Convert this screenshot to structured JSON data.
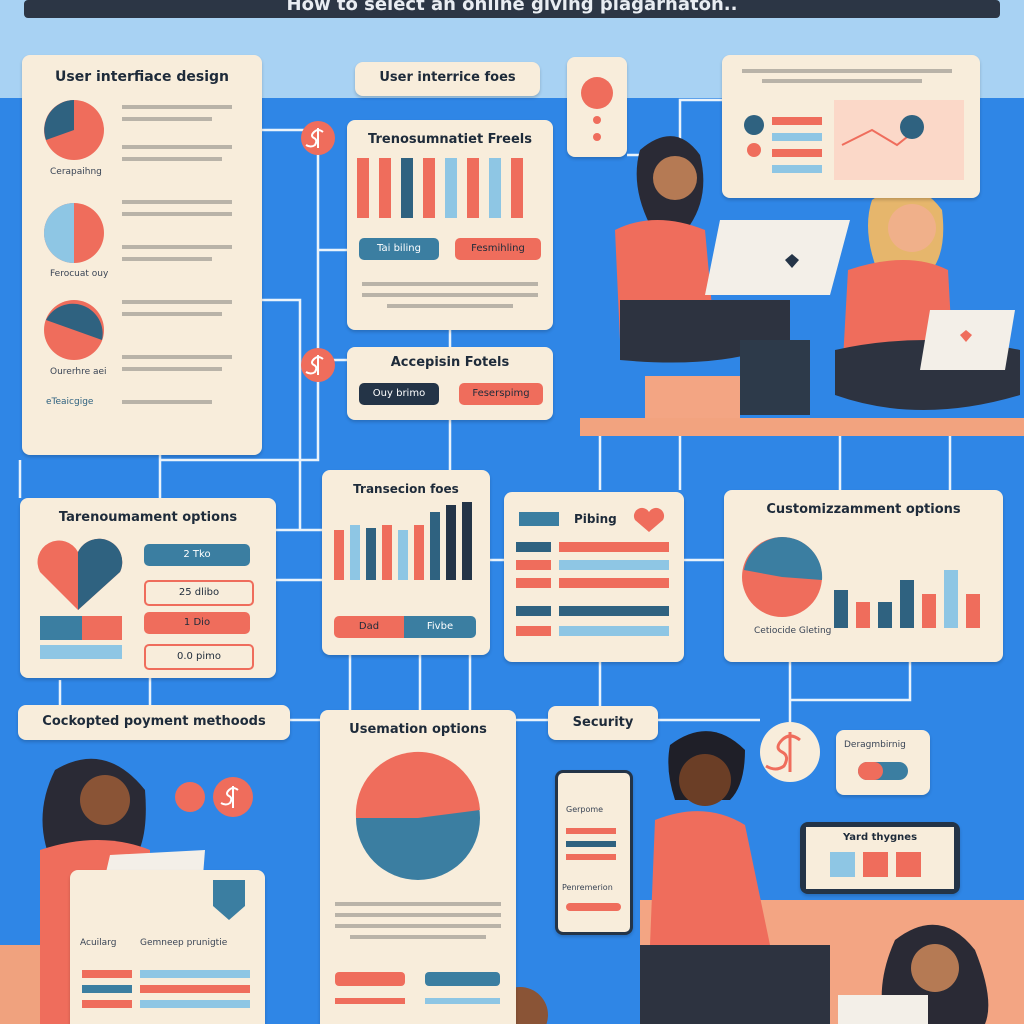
{
  "header": {
    "title": "How to select an online giving plagarnaton.."
  },
  "panels": {
    "ui_design": {
      "title": "User interfiace design",
      "caption1": "Cerapaihng",
      "caption2": "Ferocuat ouy",
      "caption3": "Ourerhre aei",
      "footer": "eTeaicgige"
    },
    "ui_fees": {
      "title": "User interrice foes"
    },
    "transaction_fees_top": {
      "title": "Trenosumnatiet Freels",
      "button1": "Tai biling",
      "button2": "Fesmihling"
    },
    "accepted_fees": {
      "title": "Accepisin Fotels",
      "button1": "Ouy brimo",
      "button2": "Feserspimg"
    },
    "tournament": {
      "title": "Tarenoumament options",
      "button1": "2 Tko",
      "button2": "25 dlibo",
      "button3": "1 Dio",
      "button4": "0.0 pimo"
    },
    "transaction_fees": {
      "title": "Transecion foes",
      "button1": "Dad",
      "button2": "Fivbe"
    },
    "pricing": {
      "title": "Pibing"
    },
    "customization": {
      "title": "Customizzamment options",
      "caption": "Cetiocide Gleting"
    },
    "payment_methods": {
      "title": "Cockopted poyment methoods"
    },
    "automation": {
      "title": "Usemation options"
    },
    "security": {
      "title": "Security",
      "phone1": "Gerpome",
      "phone2": "Penremerion"
    },
    "small_tag": {
      "title": "Deragmbirnig"
    },
    "laptop": {
      "title": "Yard thygnes"
    },
    "bottom_left": {
      "col1": "Acuilarg",
      "col2": "Gemneep prunigtie"
    }
  }
}
